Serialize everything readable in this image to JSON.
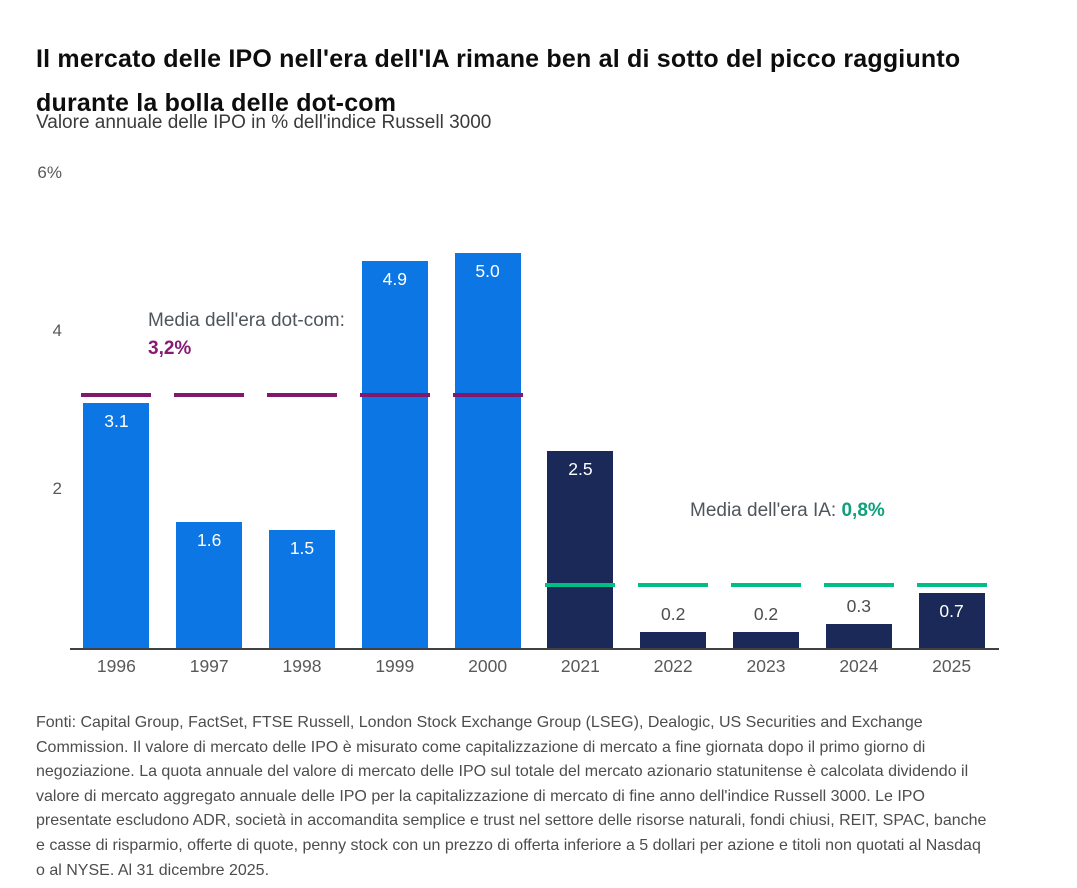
{
  "header": {
    "title": "Il mercato delle IPO nell'era dell'IA rimane ben al di sotto del picco raggiunto durante la bolla delle dot-com",
    "subtitle": "Valore annuale delle IPO in % dell'indice Russell 3000"
  },
  "chart_data": {
    "type": "bar",
    "title": "Il mercato delle IPO nell'era dell'IA rimane ben al di sotto del picco raggiunto durante la bolla delle dot-com",
    "subtitle": "Valore annuale delle IPO in % dell'indice Russell 3000",
    "xlabel": "",
    "ylabel": "Valore annuale delle IPO in % dell'indice Russell 3000",
    "categories": [
      "1996",
      "1997",
      "1998",
      "1999",
      "2000",
      "2021",
      "2022",
      "2023",
      "2024",
      "2025"
    ],
    "values": [
      3.1,
      1.6,
      1.5,
      4.9,
      5.0,
      2.5,
      0.2,
      0.2,
      0.3,
      0.7
    ],
    "value_labels": [
      "3.1",
      "1.6",
      "1.5",
      "4.9",
      "5.0",
      "2.5",
      "0.2",
      "0.2",
      "0.3",
      "0.7"
    ],
    "label_inside": [
      true,
      true,
      true,
      true,
      true,
      true,
      false,
      false,
      false,
      true
    ],
    "eras": [
      "dotcom",
      "dotcom",
      "dotcom",
      "dotcom",
      "dotcom",
      "ai",
      "ai",
      "ai",
      "ai",
      "ai"
    ],
    "series": [
      {
        "name": "Era dot-com",
        "categories": [
          "1996",
          "1997",
          "1998",
          "1999",
          "2000"
        ],
        "values": [
          3.1,
          1.6,
          1.5,
          4.9,
          5.0
        ]
      },
      {
        "name": "Era IA",
        "categories": [
          "2021",
          "2022",
          "2023",
          "2024",
          "2025"
        ],
        "values": [
          2.5,
          0.2,
          0.2,
          0.3,
          0.7
        ]
      }
    ],
    "avg_lines": [
      {
        "era": "dotcom",
        "value": 3.2,
        "label": "Media dell'era dot-com: 3,2%"
      },
      {
        "era": "ai",
        "value": 0.8,
        "label": "Media dell'era IA: 0,8%"
      }
    ],
    "ylim": [
      0,
      6
    ],
    "yticks": [
      {
        "value": 6,
        "label": "6%"
      },
      {
        "value": 4,
        "label": "4"
      },
      {
        "value": 2,
        "label": "2"
      }
    ],
    "grid": false,
    "legend_position": "none",
    "colors": {
      "dotcom_bar": "#0b76e4",
      "ai_bar": "#1a2957",
      "dotcom_avg_line": "#82176e",
      "ai_avg_line": "#00bf86",
      "axis": "#414141",
      "tick_text": "#58595b",
      "value_text_inside": "#ffffff",
      "value_text_outside": "#4d4d4d"
    }
  },
  "annotations": {
    "dotcom": {
      "text": "Media dell'era dot-com: ",
      "value": "3,2%"
    },
    "ai": {
      "text": "Media dell'era IA: ",
      "value": "0,8%"
    }
  },
  "footer": {
    "text": "Fonti: Capital Group, FactSet, FTSE Russell, London Stock Exchange Group (LSEG), Dealogic, US Securities and Exchange Commission. Il valore di mercato delle IPO è misurato come capitalizzazione di mercato a fine giornata dopo il primo giorno di negoziazione. La quota annuale del valore di mercato delle IPO sul totale del mercato azionario statunitense è calcolata dividendo il valore di mercato aggregato annuale delle IPO per la capitalizzazione di mercato di fine anno dell'indice Russell 3000. Le IPO presentate escludono ADR, società in accomandita semplice e trust nel settore delle risorse naturali, fondi chiusi, REIT, SPAC, banche e casse di risparmio, offerte di quote, penny stock con un prezzo di offerta inferiore a 5 dollari per azione e titoli non quotati al Nasdaq o al NYSE. Al 31 dicembre 2025."
  }
}
